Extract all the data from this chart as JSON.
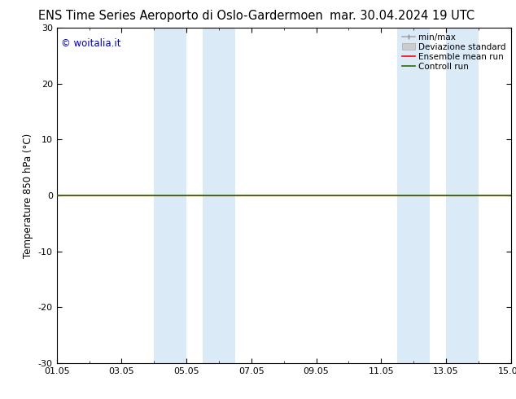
{
  "title_left": "ENS Time Series Aeroporto di Oslo-Gardermoen",
  "title_right": "mar. 30.04.2024 19 UTC",
  "ylabel": "Temperature 850 hPa (°C)",
  "ylim": [
    -30,
    30
  ],
  "yticks": [
    -30,
    -20,
    -10,
    0,
    10,
    20,
    30
  ],
  "xtick_labels": [
    "01.05",
    "03.05",
    "05.05",
    "07.05",
    "09.05",
    "11.05",
    "13.05",
    "15.05"
  ],
  "xtick_positions": [
    0,
    2,
    4,
    6,
    8,
    10,
    12,
    14
  ],
  "shaded_bands": [
    {
      "x_start": 3.0,
      "x_end": 4.0
    },
    {
      "x_start": 4.5,
      "x_end": 5.5
    },
    {
      "x_start": 10.5,
      "x_end": 11.5
    },
    {
      "x_start": 12.0,
      "x_end": 13.0
    }
  ],
  "shade_color": "#daeaf7",
  "flat_line_y": 0,
  "control_run_color": "#2d6a00",
  "ensemble_mean_color": "#ff0000",
  "watermark": "© woitalia.it",
  "watermark_color": "#0000bb",
  "background_color": "#ffffff",
  "title_fontsize": 10.5,
  "axis_fontsize": 8.5,
  "tick_fontsize": 8,
  "legend_fontsize": 7.5
}
